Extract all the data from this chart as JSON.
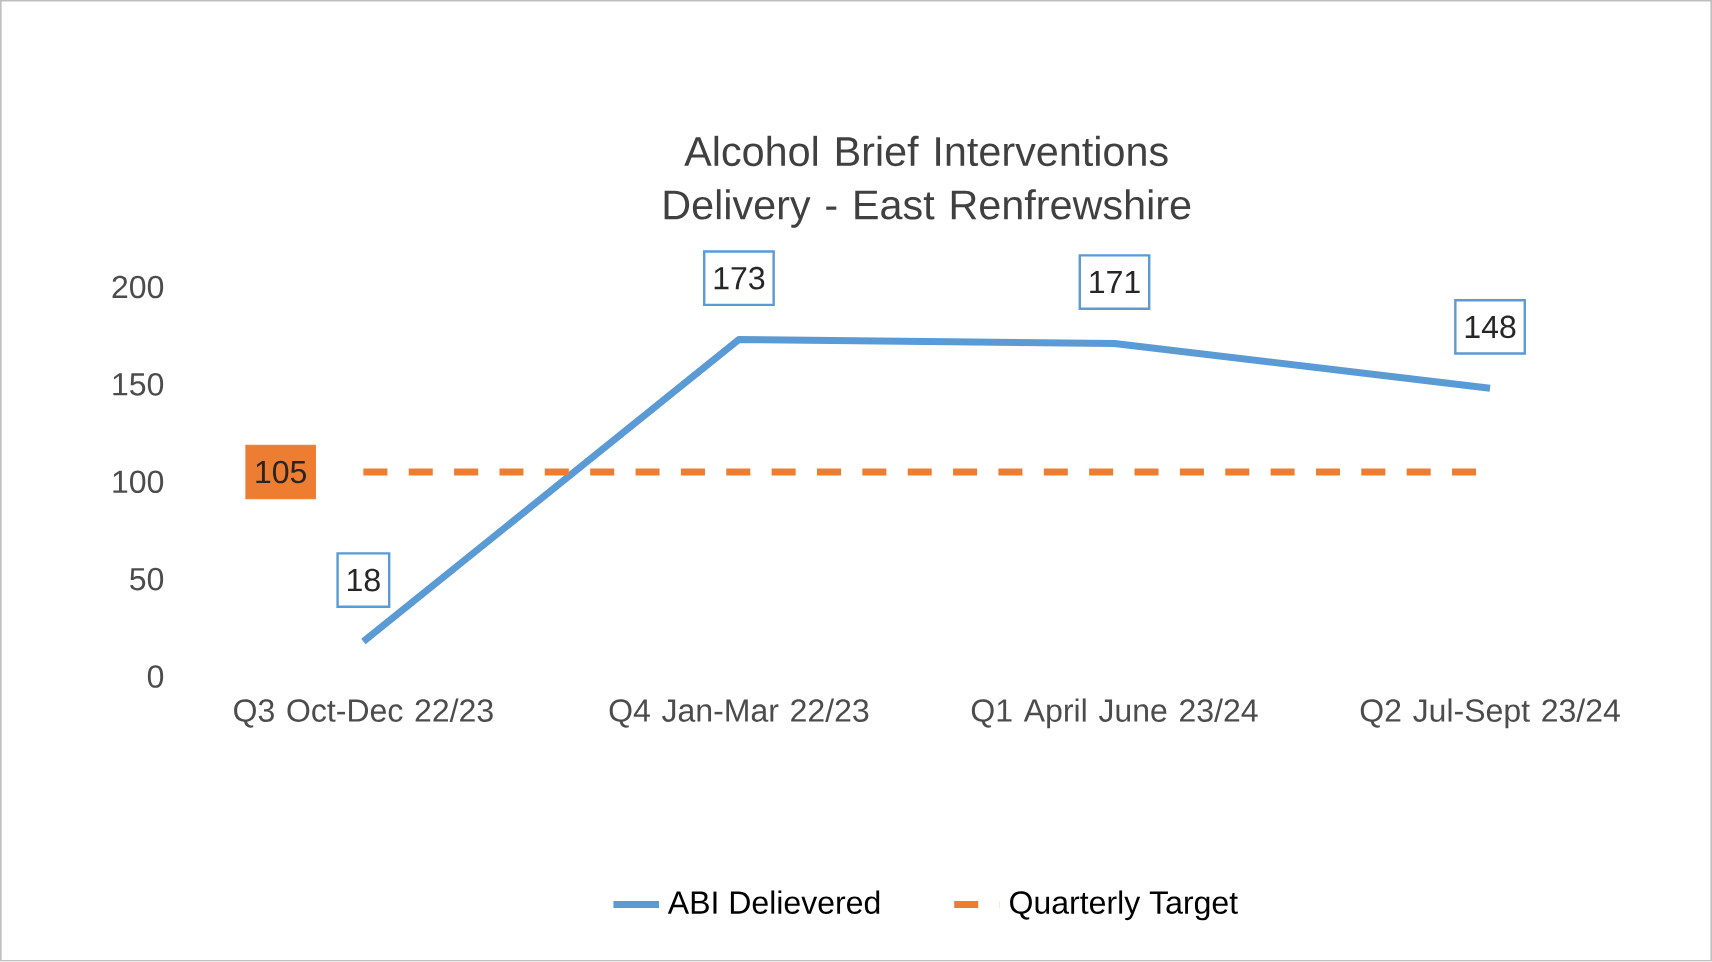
{
  "chart_data": {
    "type": "line",
    "title": "Alcohol Brief Interventions Delivery - East Renfrewshire",
    "categories": [
      "Q3 Oct-Dec 22/23",
      "Q4 Jan-Mar 22/23",
      "Q1 April June 23/24",
      "Q2 Jul-Sept 23/24"
    ],
    "series": [
      {
        "name": "ABI Delievered",
        "color": "#5b9bd5",
        "line_style": "solid",
        "values": [
          18,
          173,
          171,
          148
        ],
        "value_labels": [
          "18",
          "173",
          "171",
          "148"
        ]
      },
      {
        "name": "Quarterly Target",
        "color": "#ed7d31",
        "line_style": "dashed",
        "values": [
          105,
          105,
          105,
          105
        ],
        "value_labels": [
          "105",
          null,
          null,
          null
        ]
      }
    ],
    "ylim": [
      0,
      200
    ],
    "yticks": [
      0,
      50,
      100,
      150,
      200
    ],
    "grid": false,
    "legend": "bottom",
    "marker": "none"
  }
}
